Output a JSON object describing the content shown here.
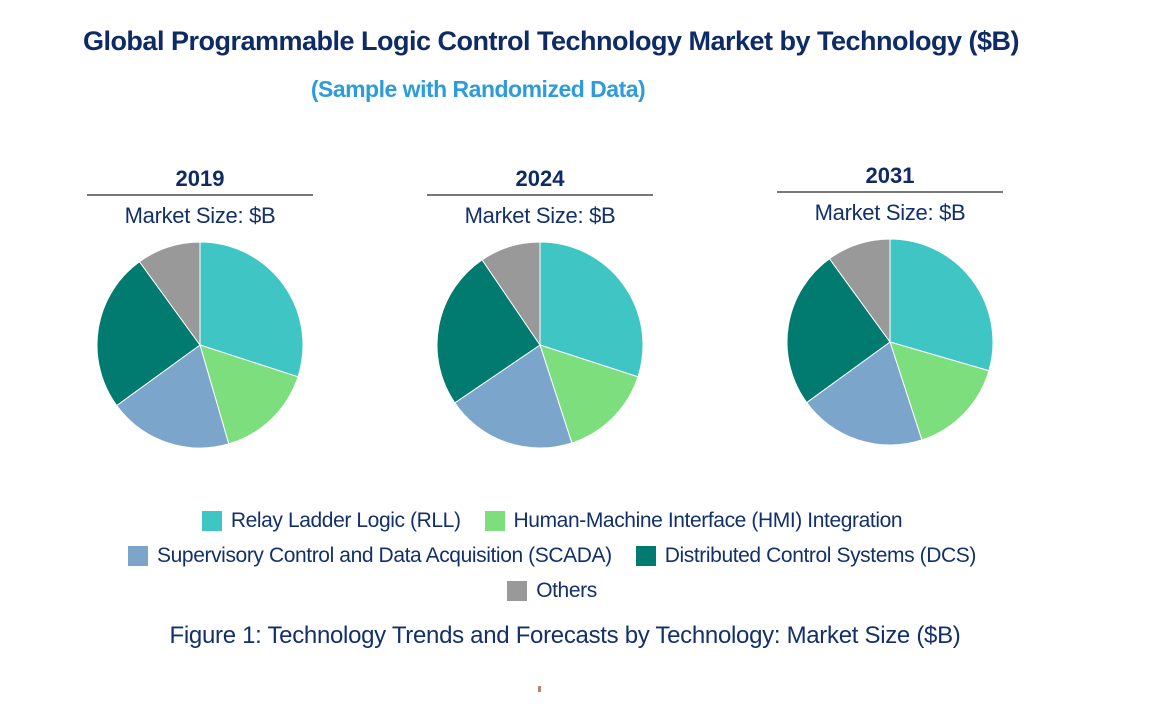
{
  "header": {
    "title": "Global Programmable Logic Control Technology Market by Technology ($B)",
    "subtitle": "(Sample with Randomized Data)"
  },
  "colors": {
    "series": [
      "#3EC5C4",
      "#7CDE7C",
      "#7CA5CB",
      "#017A6F",
      "#999999"
    ],
    "title_text": "#0E2B66",
    "subtitle_text": "#2E9BDA",
    "body_text": "#13306B",
    "divider": "#787878",
    "artifact_dot": "#BC8568"
  },
  "legend": {
    "items": [
      {
        "label": "Relay Ladder Logic (RLL)"
      },
      {
        "label": "Human-Machine Interface (HMI) Integration"
      },
      {
        "label": "Supervisory Control and Data Acquisition (SCADA)"
      },
      {
        "label": "Distributed Control Systems (DCS)"
      },
      {
        "label": "Others"
      }
    ]
  },
  "chart_data": [
    {
      "type": "pie",
      "year_label": "2019",
      "subtitle": "Market Size: $B",
      "categories": [
        "Relay Ladder Logic (RLL)",
        "Human-Machine Interface (HMI) Integration",
        "Supervisory Control and Data Acquisition (SCADA)",
        "Distributed Control Systems (DCS)",
        "Others"
      ],
      "values": [
        30.0,
        15.5,
        19.5,
        25.0,
        10.0
      ],
      "values_are": "estimated_percent_share",
      "start_angle_deg": 0,
      "direction": "clockwise",
      "legend_position": "bottom"
    },
    {
      "type": "pie",
      "year_label": "2024",
      "subtitle": "Market Size: $B",
      "categories": [
        "Relay Ladder Logic (RLL)",
        "Human-Machine Interface (HMI) Integration",
        "Supervisory Control and Data Acquisition (SCADA)",
        "Distributed Control Systems (DCS)",
        "Others"
      ],
      "values": [
        30.0,
        15.0,
        20.5,
        25.0,
        9.5
      ],
      "values_are": "estimated_percent_share",
      "start_angle_deg": 0,
      "direction": "clockwise",
      "legend_position": "bottom"
    },
    {
      "type": "pie",
      "year_label": "2031",
      "subtitle": "Market Size: $B",
      "categories": [
        "Relay Ladder Logic (RLL)",
        "Human-Machine Interface (HMI) Integration",
        "Supervisory Control and Data Acquisition (SCADA)",
        "Distributed Control Systems (DCS)",
        "Others"
      ],
      "values": [
        29.5,
        15.5,
        20.0,
        25.0,
        10.0
      ],
      "values_are": "estimated_percent_share",
      "start_angle_deg": 0,
      "direction": "clockwise",
      "legend_position": "bottom"
    }
  ],
  "caption": "Figure 1: Technology Trends and Forecasts by Technology: Market Size ($B)"
}
